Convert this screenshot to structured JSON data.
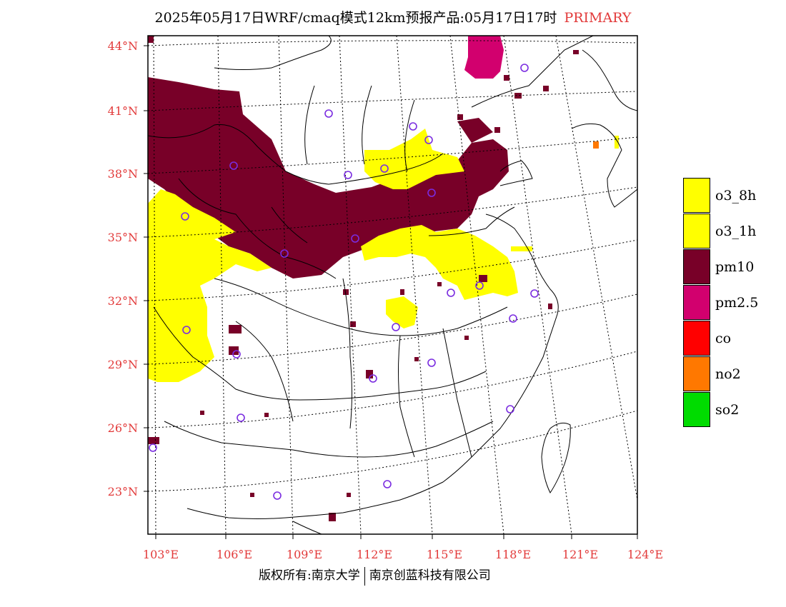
{
  "title": {
    "main": "2025年05月17日WRF/cmaq模式12km预报产品:05月17日17时",
    "pollutant": "PRIMARY"
  },
  "axes": {
    "lat_labels": [
      "44°N",
      "41°N",
      "38°N",
      "35°N",
      "32°N",
      "29°N",
      "26°N",
      "23°N"
    ],
    "lon_labels": [
      "103°E",
      "106°E",
      "109°E",
      "112°E",
      "115°E",
      "118°E",
      "121°E",
      "124°E"
    ]
  },
  "legend": {
    "items": [
      {
        "label": "o3_8h",
        "color": "#ffff00"
      },
      {
        "label": "o3_1h",
        "color": "#ffff00"
      },
      {
        "label": "pm10",
        "color": "#780028"
      },
      {
        "label": "pm2.5",
        "color": "#d2006e"
      },
      {
        "label": "co",
        "color": "#ff0000"
      },
      {
        "label": "no2",
        "color": "#ff7800"
      },
      {
        "label": "so2",
        "color": "#00dc00"
      }
    ]
  },
  "footer": {
    "left": "版权所有:南京大学",
    "right": "南京创蓝科技有限公司"
  }
}
